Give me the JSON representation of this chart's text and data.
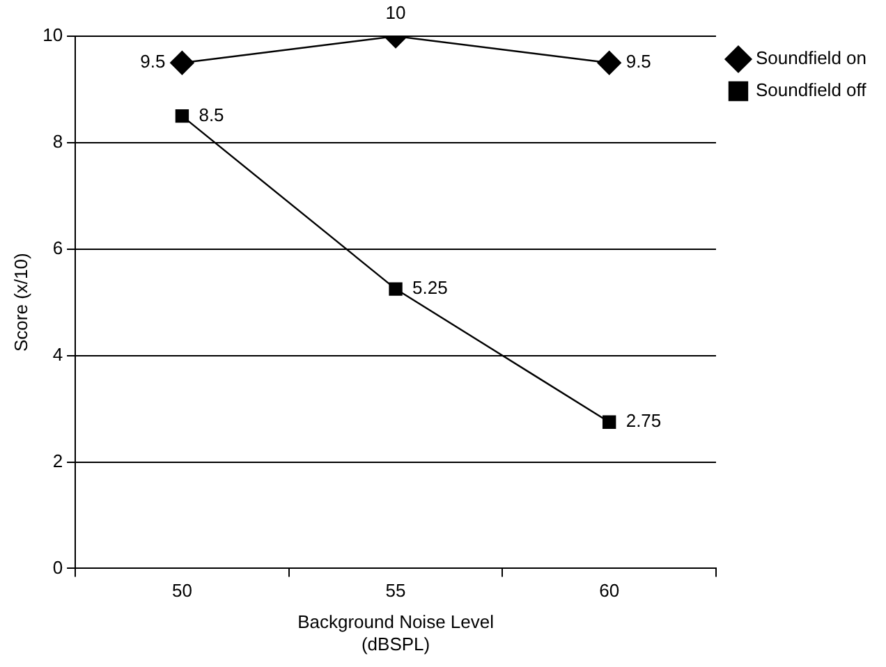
{
  "chart_data": {
    "type": "line",
    "xlabel": "Background Noise Level\n(dBSPL)",
    "ylabel": "Score (x/10)",
    "categories": [
      "50",
      "55",
      "60"
    ],
    "series": [
      {
        "name": "Soundfield on",
        "color": "#000000",
        "marker": "diamond",
        "values": [
          9.5,
          10,
          9.5
        ]
      },
      {
        "name": "Soundfield off",
        "color": "#000000",
        "marker": "square",
        "values": [
          8.5,
          5.25,
          2.75
        ]
      }
    ],
    "ylim": [
      0,
      10
    ],
    "yticks": [
      0,
      2,
      4,
      6,
      8,
      10
    ],
    "grid": "y",
    "legend": "top right",
    "data_labels": true
  }
}
